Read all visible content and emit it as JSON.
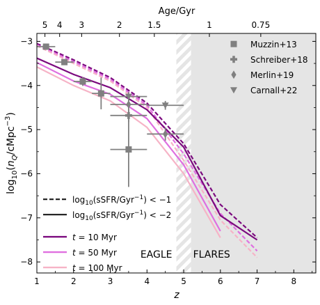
{
  "chart_data": {
    "type": "line",
    "xlabel": "z",
    "ylabel": "log₁₀(n_Q/cMpc⁻³)",
    "top_axis_label": "Age/Gyr",
    "xlim": [
      1,
      8.6
    ],
    "ylim": [
      -8.25,
      -2.82
    ],
    "x_ticks": [
      1,
      2,
      3,
      4,
      5,
      6,
      7,
      8
    ],
    "y_ticks": [
      -3,
      -4,
      -5,
      -6,
      -7,
      -8
    ],
    "top_ticks": [
      {
        "label": "5",
        "z": 1.22
      },
      {
        "label": "4",
        "z": 1.62
      },
      {
        "label": "3",
        "z": 2.22
      },
      {
        "label": "2",
        "z": 3.25
      },
      {
        "label": "1.5",
        "z": 4.2
      },
      {
        "label": "1",
        "z": 5.7
      },
      {
        "label": "0.75",
        "z": 7.1
      }
    ],
    "regions": [
      {
        "name": "EAGLE",
        "label": "EAGLE",
        "range": [
          1,
          4.8
        ]
      },
      {
        "name": "transition",
        "label": "",
        "range": [
          4.8,
          5.2
        ],
        "style": "hatched"
      },
      {
        "name": "FLARES",
        "label": "FLARES",
        "range": [
          5.2,
          8.6
        ],
        "color": "#e5e5e5"
      }
    ],
    "legend_criteria": {
      "position": "bottom-left",
      "entries": [
        {
          "label_main": "log",
          "label_sub": "10",
          "label_rest": "(sSFR/Gyr",
          "label_sup": "−1",
          "label_end": ") < −1",
          "dash": "dashed"
        },
        {
          "label_main": "log",
          "label_sub": "10",
          "label_rest": "(sSFR/Gyr",
          "label_sup": "−1",
          "label_end": ") < −2",
          "dash": "solid"
        }
      ]
    },
    "legend_timescales": {
      "position": "bottom-left",
      "entries": [
        {
          "label_t": "t",
          "label_rest": " = 10 Myr",
          "color": "#7b0a7e"
        },
        {
          "label_t": "t",
          "label_rest": " = 50 Myr",
          "color": "#df6fe0"
        },
        {
          "label_t": "t",
          "label_rest": " = 100 Myr",
          "color": "#f6b3c6"
        }
      ]
    },
    "legend_observations": {
      "position": "top-right",
      "entries": [
        {
          "label": "Muzzin+13",
          "marker": "square"
        },
        {
          "label": "Schreiber+18",
          "marker": "plus"
        },
        {
          "label": "Merlin+19",
          "marker": "diamond"
        },
        {
          "label": "Carnall+22",
          "marker": "triangle-down"
        }
      ]
    },
    "series": [
      {
        "color": "#7b0a7e",
        "dash": "dashed",
        "x": [
          1,
          2,
          3,
          4,
          5,
          6,
          7
        ],
        "y": [
          -3.05,
          -3.42,
          -3.82,
          -4.4,
          -5.32,
          -6.7,
          -7.45
        ]
      },
      {
        "color": "#df6fe0",
        "dash": "dashed",
        "x": [
          1,
          2,
          3,
          4,
          5,
          6,
          7
        ],
        "y": [
          -3.08,
          -3.46,
          -3.86,
          -4.45,
          -5.55,
          -6.9,
          -7.75
        ]
      },
      {
        "color": "#f6b3c6",
        "dash": "dashed",
        "x": [
          1,
          2,
          3,
          4,
          5,
          6,
          7
        ],
        "y": [
          -3.1,
          -3.5,
          -3.9,
          -4.5,
          -5.7,
          -7.05,
          -7.9
        ]
      },
      {
        "color": "#7b0a7e",
        "dash": "solid",
        "x": [
          1,
          2,
          3,
          4,
          5,
          6,
          7
        ],
        "y": [
          -3.38,
          -3.75,
          -4.05,
          -4.55,
          -5.4,
          -6.95,
          -7.5
        ]
      },
      {
        "color": "#df6fe0",
        "dash": "solid",
        "x": [
          1,
          2,
          3,
          4,
          5,
          6
        ],
        "y": [
          -3.48,
          -3.9,
          -4.2,
          -4.75,
          -5.8,
          -7.3
        ]
      },
      {
        "color": "#f6b3c6",
        "dash": "solid",
        "x": [
          1,
          2,
          3,
          4,
          5,
          6
        ],
        "y": [
          -3.58,
          -4.0,
          -4.35,
          -4.95,
          -6.0,
          -7.45
        ]
      }
    ],
    "observations": [
      {
        "name": "Muzzin+13",
        "marker": "square",
        "x": 1.25,
        "y": -3.12,
        "xerr": [
          0.25,
          0.25
        ],
        "yerr": [
          0.05,
          0.05
        ]
      },
      {
        "name": "Muzzin+13",
        "marker": "square",
        "x": 1.75,
        "y": -3.47,
        "xerr": [
          0.25,
          0.25
        ],
        "yerr": [
          0.05,
          0.05
        ]
      },
      {
        "name": "Muzzin+13",
        "marker": "square",
        "x": 2.25,
        "y": -3.91,
        "xerr": [
          0.25,
          0.25
        ],
        "yerr": [
          0.1,
          0.1
        ]
      },
      {
        "name": "Muzzin+13",
        "marker": "square",
        "x": 2.75,
        "y": -4.18,
        "xerr": [
          0.25,
          0.25
        ],
        "yerr": [
          0.36,
          0.36
        ]
      },
      {
        "name": "Muzzin+13",
        "marker": "square",
        "x": 3.5,
        "y": -5.45,
        "xerr": [
          0.5,
          0.5
        ],
        "yerr": [
          0.85,
          0.85
        ]
      },
      {
        "name": "Schreiber+18",
        "marker": "plus",
        "x": 3.5,
        "y": -4.68,
        "xerr": [
          0.5,
          0.5
        ],
        "yerr": [
          0.15,
          0.15
        ]
      },
      {
        "name": "Merlin+19",
        "marker": "diamond",
        "x": 3.5,
        "y": -4.43,
        "xerr": [
          0.5,
          0.5
        ],
        "yerr": [
          0.2,
          0.2
        ]
      },
      {
        "name": "Merlin+19",
        "marker": "diamond",
        "x": 4.5,
        "y": -5.1,
        "xerr": [
          0.5,
          0.5
        ],
        "yerr": [
          0.15,
          0.15
        ]
      },
      {
        "name": "Carnall+22",
        "marker": "triangle-down",
        "x": 3.5,
        "y": -4.25,
        "xerr": [
          0.5,
          0.5
        ],
        "yerr": [
          0.1,
          0.1
        ]
      },
      {
        "name": "Carnall+22",
        "marker": "triangle-down",
        "x": 4.5,
        "y": -4.45,
        "xerr": [
          0.5,
          0.5
        ],
        "yerr": [
          0.1,
          0.1
        ]
      }
    ]
  }
}
